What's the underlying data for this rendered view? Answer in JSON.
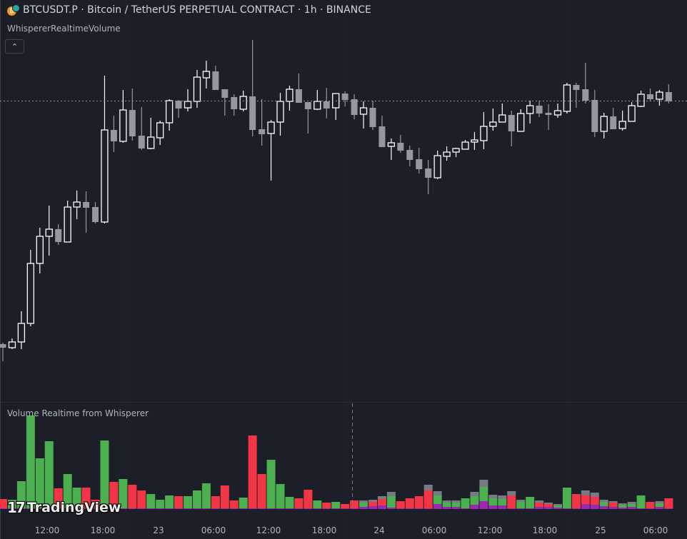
{
  "header": {
    "symbol_title": "BTCUSDT.P · Bitcoin / TetherUS PERPETUAL CONTRACT · 1h · BINANCE",
    "coin_icon": "bitcoin-icon",
    "indicator_name": "WhispererRealtimeVolume",
    "collapse_icon": "chevron-up-icon",
    "collapse_glyph": "⌃"
  },
  "volume_pane": {
    "title": "Volume Realtime from Whisperer"
  },
  "logo": {
    "text": "TradingView",
    "mark": "17"
  },
  "colors": {
    "background": "#1c1f27",
    "bull_body": "#1c1f27",
    "bull_border": "#ffffff",
    "bear_body": "#9598a1",
    "volume_up": "#4caf50",
    "volume_down": "#f23645",
    "volume_grey": "#787b86",
    "volume_purple": "#9c27b0"
  },
  "time_axis": {
    "labels": [
      "12:00",
      "18:00",
      "23",
      "06:00",
      "12:00",
      "18:00",
      "24",
      "06:00",
      "12:00",
      "18:00",
      "25",
      "06:00"
    ]
  },
  "chart_data": [
    {
      "type": "candlestick",
      "interval": "1h",
      "price_line": 459,
      "candles_ohlc": [
        [
          118,
          120,
          94,
          113
        ],
        [
          113,
          126,
          111,
          121
        ],
        [
          121,
          164,
          111,
          147
        ],
        [
          147,
          250,
          143,
          231
        ],
        [
          231,
          281,
          217,
          269
        ],
        [
          269,
          312,
          242,
          279
        ],
        [
          279,
          286,
          257,
          261
        ],
        [
          261,
          319,
          261,
          310
        ],
        [
          310,
          333,
          293,
          317
        ],
        [
          317,
          332,
          274,
          309
        ],
        [
          310,
          317,
          287,
          289
        ],
        [
          289,
          494,
          287,
          418
        ],
        [
          418,
          438,
          387,
          402
        ],
        [
          402,
          474,
          400,
          446
        ],
        [
          446,
          476,
          403,
          409
        ],
        [
          410,
          450,
          390,
          392
        ],
        [
          392,
          435,
          391,
          408
        ],
        [
          407,
          431,
          397,
          428
        ],
        [
          428,
          461,
          417,
          459
        ],
        [
          459,
          460,
          435,
          448
        ],
        [
          449,
          475,
          444,
          458
        ],
        [
          458,
          502,
          449,
          492
        ],
        [
          491,
          515,
          476,
          500
        ],
        [
          500,
          508,
          474,
          474
        ],
        [
          475,
          475,
          438,
          463
        ],
        [
          464,
          468,
          438,
          447
        ],
        [
          447,
          473,
          444,
          465
        ],
        [
          465,
          544,
          409,
          418
        ],
        [
          419,
          461,
          396,
          412
        ],
        [
          413,
          432,
          347,
          429
        ],
        [
          429,
          470,
          410,
          458
        ],
        [
          458,
          480,
          445,
          475
        ],
        [
          475,
          497,
          456,
          456
        ],
        [
          457,
          457,
          413,
          447
        ],
        [
          447,
          474,
          446,
          458
        ],
        [
          458,
          477,
          434,
          448
        ],
        [
          449,
          469,
          432,
          469
        ],
        [
          469,
          472,
          451,
          460
        ],
        [
          461,
          468,
          433,
          439
        ],
        [
          440,
          458,
          420,
          449
        ],
        [
          449,
          459,
          418,
          422
        ],
        [
          423,
          438,
          394,
          394
        ],
        [
          395,
          406,
          376,
          400
        ],
        [
          400,
          411,
          386,
          389
        ],
        [
          390,
          396,
          367,
          376
        ],
        [
          377,
          393,
          357,
          363
        ],
        [
          364,
          376,
          328,
          351
        ],
        [
          351,
          389,
          349,
          382
        ],
        [
          381,
          395,
          375,
          387
        ],
        [
          387,
          393,
          380,
          392
        ],
        [
          391,
          404,
          391,
          401
        ],
        [
          401,
          415,
          390,
          404
        ],
        [
          403,
          443,
          391,
          423
        ],
        [
          423,
          448,
          417,
          429
        ],
        [
          429,
          455,
          429,
          439
        ],
        [
          439,
          445,
          395,
          416
        ],
        [
          416,
          447,
          416,
          441
        ],
        [
          441,
          459,
          427,
          452
        ],
        [
          452,
          459,
          436,
          441
        ],
        [
          442,
          454,
          418,
          439
        ],
        [
          439,
          455,
          435,
          445
        ],
        [
          444,
          484,
          441,
          481
        ],
        [
          481,
          484,
          449,
          474
        ],
        [
          475,
          512,
          455,
          459
        ],
        [
          460,
          474,
          408,
          415
        ],
        [
          416,
          442,
          406,
          437
        ],
        [
          437,
          449,
          419,
          419
        ],
        [
          420,
          445,
          417,
          430
        ],
        [
          430,
          457,
          430,
          452
        ],
        [
          451,
          473,
          450,
          468
        ],
        [
          468,
          476,
          458,
          461
        ],
        [
          461,
          474,
          452,
          471
        ],
        [
          471,
          482,
          455,
          458
        ]
      ]
    },
    {
      "type": "stacked_bar",
      "title": "Volume Realtime from Whisperer",
      "stack_order": [
        "purple",
        "direction",
        "grey"
      ],
      "bars": [
        [
          "down",
          1,
          13,
          0
        ],
        [
          "up",
          1,
          12,
          0
        ],
        [
          "up",
          1,
          38,
          0
        ],
        [
          "up",
          1,
          130,
          0
        ],
        [
          "up",
          1,
          70,
          0
        ],
        [
          "up",
          1,
          94,
          0
        ],
        [
          "down",
          1,
          28,
          0
        ],
        [
          "up",
          1,
          48,
          0
        ],
        [
          "up",
          1,
          29,
          0
        ],
        [
          "down",
          1,
          29,
          0
        ],
        [
          "down",
          1,
          12,
          0
        ],
        [
          "up",
          1,
          95,
          0
        ],
        [
          "down",
          1,
          37,
          0
        ],
        [
          "up",
          1,
          41,
          0
        ],
        [
          "down",
          1,
          33,
          0
        ],
        [
          "down",
          1,
          25,
          0
        ],
        [
          "up",
          1,
          20,
          0
        ],
        [
          "up",
          1,
          12,
          0
        ],
        [
          "up",
          1,
          18,
          0
        ],
        [
          "down",
          1,
          17,
          0
        ],
        [
          "up",
          1,
          17,
          0
        ],
        [
          "up",
          1,
          25,
          0
        ],
        [
          "up",
          1,
          35,
          0
        ],
        [
          "down",
          1,
          17,
          0
        ],
        [
          "down",
          1,
          32,
          0
        ],
        [
          "down",
          1,
          11,
          0
        ],
        [
          "up",
          1,
          15,
          0
        ],
        [
          "down",
          1,
          102,
          0
        ],
        [
          "down",
          1,
          48,
          0
        ],
        [
          "up",
          1,
          68,
          0
        ],
        [
          "up",
          1,
          34,
          0
        ],
        [
          "up",
          1,
          16,
          0
        ],
        [
          "down",
          1,
          14,
          0
        ],
        [
          "down",
          1,
          26,
          0
        ],
        [
          "up",
          1,
          11,
          0
        ],
        [
          "down",
          1,
          8,
          0
        ],
        [
          "up",
          1,
          9,
          0
        ],
        [
          "down",
          1,
          6,
          0
        ],
        [
          "down",
          1,
          11,
          0
        ],
        [
          "up",
          3,
          6,
          3
        ],
        [
          "down",
          4,
          6,
          3
        ],
        [
          "down",
          5,
          9,
          4
        ],
        [
          "up",
          2,
          16,
          6
        ],
        [
          "down",
          1,
          10,
          0
        ],
        [
          "down",
          1,
          14,
          0
        ],
        [
          "down",
          1,
          17,
          0
        ],
        [
          "down",
          1,
          25,
          8
        ],
        [
          "up",
          7,
          12,
          6
        ],
        [
          "up",
          3,
          6,
          3
        ],
        [
          "up",
          3,
          6,
          3
        ],
        [
          "up",
          1,
          14,
          0
        ],
        [
          "up",
          6,
          12,
          6
        ],
        [
          "up",
          11,
          20,
          10
        ],
        [
          "up",
          5,
          10,
          5
        ],
        [
          "up",
          5,
          9,
          5
        ],
        [
          "down",
          1,
          18,
          6
        ],
        [
          "up",
          1,
          9,
          3
        ],
        [
          "up",
          1,
          16,
          0
        ],
        [
          "down",
          3,
          6,
          3
        ],
        [
          "down",
          3,
          4,
          2
        ],
        [
          "up",
          2,
          3,
          2
        ],
        [
          "up",
          1,
          29,
          0
        ],
        [
          "down",
          1,
          20,
          0
        ],
        [
          "down",
          7,
          12,
          7
        ],
        [
          "down",
          6,
          11,
          6
        ],
        [
          "up",
          4,
          6,
          3
        ],
        [
          "down",
          3,
          6,
          2
        ],
        [
          "up",
          2,
          4,
          2
        ],
        [
          "up",
          3,
          4,
          3
        ],
        [
          "up",
          1,
          18,
          0
        ],
        [
          "down",
          1,
          9,
          0
        ],
        [
          "up",
          3,
          5,
          3
        ],
        [
          "down",
          1,
          14,
          0
        ]
      ]
    }
  ]
}
